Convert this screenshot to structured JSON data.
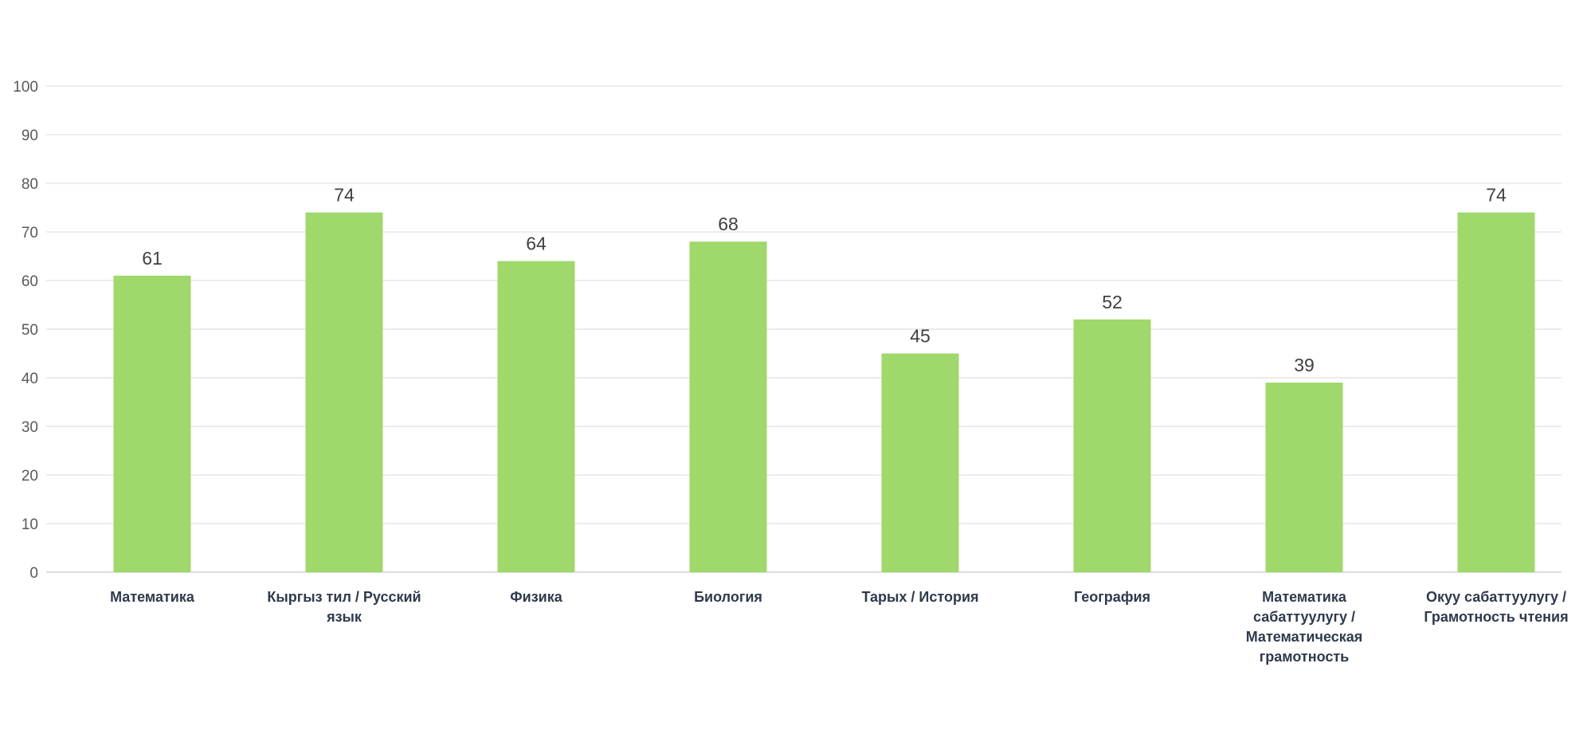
{
  "chart_data": {
    "type": "bar",
    "title": "",
    "xlabel": "",
    "ylabel": "",
    "ylim": [
      0,
      100
    ],
    "yticks": [
      "0",
      "10",
      "20",
      "30",
      "40",
      "50",
      "60",
      "70",
      "80",
      "90",
      "100"
    ],
    "grid": true,
    "legend": "none",
    "bar_color": "#9fd86b",
    "categories": [
      [
        "Математика"
      ],
      [
        "Кыргыз тил / Русский",
        "язык"
      ],
      [
        "Физика"
      ],
      [
        "Биология"
      ],
      [
        "Тарых / История"
      ],
      [
        "География"
      ],
      [
        "Математика",
        "сабаттуулугу /",
        "Математическая",
        "грамотность"
      ],
      [
        "Окуу сабаттуулугу /",
        "Грамотность чтения"
      ]
    ],
    "values": [
      61,
      74,
      64,
      68,
      45,
      52,
      39,
      74
    ],
    "data_labels": [
      "61",
      "74",
      "64",
      "68",
      "45",
      "52",
      "39",
      "74"
    ]
  }
}
